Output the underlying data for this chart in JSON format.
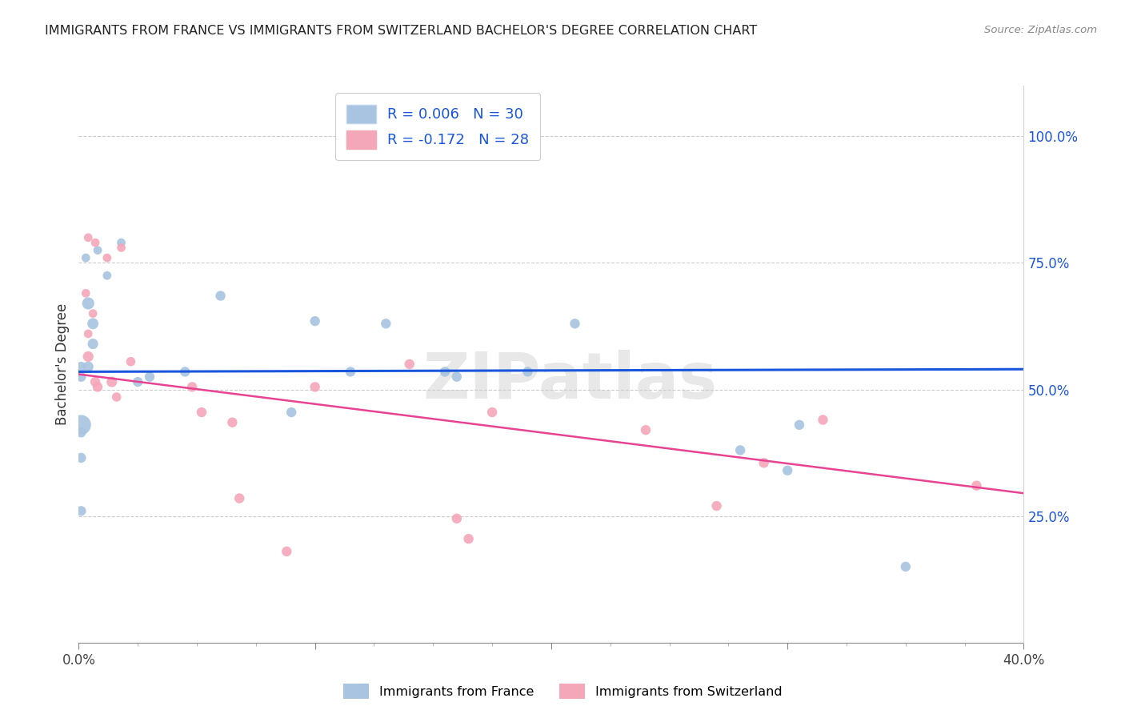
{
  "title": "IMMIGRANTS FROM FRANCE VS IMMIGRANTS FROM SWITZERLAND BACHELOR'S DEGREE CORRELATION CHART",
  "source": "Source: ZipAtlas.com",
  "ylabel": "Bachelor's Degree",
  "right_yticks": [
    "100.0%",
    "75.0%",
    "50.0%",
    "25.0%"
  ],
  "right_ytick_vals": [
    1.0,
    0.75,
    0.5,
    0.25
  ],
  "xlim": [
    0.0,
    0.4
  ],
  "ylim": [
    0.0,
    1.1
  ],
  "france_R": 0.006,
  "france_N": 30,
  "switzerland_R": -0.172,
  "switzerland_N": 28,
  "france_color": "#a8c4e0",
  "switzerland_color": "#f4a7b9",
  "france_line_color": "#1a56db",
  "switzerland_line_color": "#e84393",
  "right_tick_color": "#1a56db",
  "legend_text_color": "#1a56db",
  "watermark": "ZIPatlas",
  "france_x": [
    0.003,
    0.008,
    0.012,
    0.018,
    0.004,
    0.006,
    0.006,
    0.004,
    0.001,
    0.001,
    0.025,
    0.03,
    0.045,
    0.06,
    0.1,
    0.115,
    0.13,
    0.16,
    0.19,
    0.21,
    0.001,
    0.09,
    0.155,
    0.28,
    0.305,
    0.3,
    0.001,
    0.001,
    0.001,
    0.35
  ],
  "france_y": [
    0.76,
    0.775,
    0.725,
    0.79,
    0.67,
    0.63,
    0.59,
    0.545,
    0.545,
    0.525,
    0.515,
    0.525,
    0.535,
    0.685,
    0.635,
    0.535,
    0.63,
    0.525,
    0.535,
    0.63,
    0.43,
    0.455,
    0.535,
    0.38,
    0.43,
    0.34,
    0.415,
    0.365,
    0.26,
    0.15
  ],
  "france_sizes": [
    60,
    60,
    60,
    60,
    120,
    100,
    90,
    90,
    80,
    80,
    80,
    80,
    80,
    80,
    80,
    80,
    80,
    80,
    80,
    80,
    320,
    80,
    80,
    80,
    80,
    80,
    80,
    80,
    80,
    80
  ],
  "switz_x": [
    0.004,
    0.007,
    0.012,
    0.018,
    0.003,
    0.006,
    0.004,
    0.004,
    0.007,
    0.008,
    0.014,
    0.016,
    0.022,
    0.048,
    0.052,
    0.065,
    0.068,
    0.1,
    0.14,
    0.175,
    0.24,
    0.29,
    0.315,
    0.38,
    0.27,
    0.16,
    0.088,
    0.165
  ],
  "switz_y": [
    0.8,
    0.79,
    0.76,
    0.78,
    0.69,
    0.65,
    0.61,
    0.565,
    0.515,
    0.505,
    0.515,
    0.485,
    0.555,
    0.505,
    0.455,
    0.435,
    0.285,
    0.505,
    0.55,
    0.455,
    0.42,
    0.355,
    0.44,
    0.31,
    0.27,
    0.245,
    0.18,
    0.205
  ],
  "switz_sizes": [
    60,
    60,
    60,
    60,
    60,
    60,
    60,
    90,
    80,
    80,
    90,
    70,
    70,
    80,
    80,
    80,
    80,
    80,
    80,
    80,
    80,
    80,
    80,
    80,
    80,
    80,
    80,
    80
  ],
  "france_line_x0": 0.0,
  "france_line_x1": 0.4,
  "france_line_y0": 0.535,
  "france_line_y1": 0.54,
  "switz_line_x0": 0.0,
  "switz_line_x1": 0.4,
  "switz_line_y0": 0.53,
  "switz_line_y1": 0.295
}
